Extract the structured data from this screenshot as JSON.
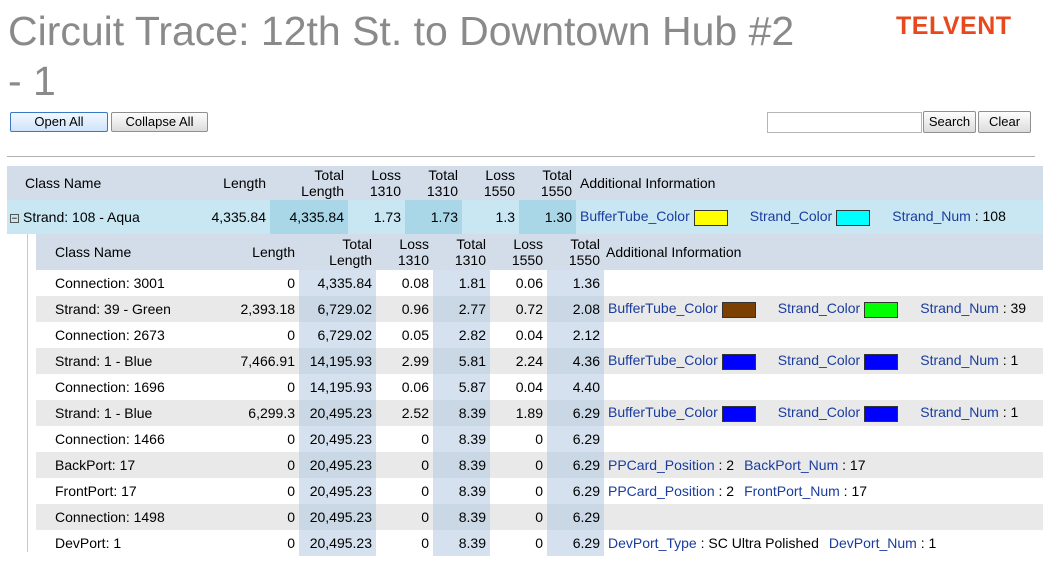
{
  "title": "Circuit Trace: 12th St. to Downtown Hub #2 - 1",
  "logo": "TELVENT",
  "toolbar": {
    "open_all": "Open All",
    "collapse_all": "Collapse All",
    "search": "Search",
    "clear": "Clear",
    "search_value": ""
  },
  "colors": {
    "yellow": "#ffff00",
    "aqua": "#00ffff",
    "brown": "#7b3f00",
    "green": "#00ff00",
    "blue": "#0000ff"
  },
  "columns": {
    "class_name": "Class Name",
    "length": "Length",
    "total_length": [
      "Total",
      "Length"
    ],
    "loss_1310": [
      "Loss",
      "1310"
    ],
    "total_1310": [
      "Total",
      "1310"
    ],
    "loss_1550": [
      "Loss",
      "1550"
    ],
    "total_1550": [
      "Total",
      "1550"
    ],
    "additional": "Additional Information"
  },
  "strand": {
    "toggle": "−",
    "name": "Strand: 108 - Aqua",
    "length": "4,335.84",
    "total_length": "4,335.84",
    "loss_1310": "1.73",
    "total_1310": "1.73",
    "loss_1550": "1.3",
    "total_1550": "1.30",
    "info": [
      {
        "key": "BufferTube_Color",
        "swatch": "#ffff00"
      },
      {
        "key": "Strand_Color",
        "swatch": "#00ffff"
      },
      {
        "key": "Strand_Num",
        "sep": " : ",
        "value": "108"
      }
    ]
  },
  "rows": [
    {
      "name": "Connection: 3001",
      "length": "0",
      "total_length": "4,335.84",
      "loss_1310": "0.08",
      "total_1310": "1.81",
      "loss_1550": "0.06",
      "total_1550": "1.36",
      "info": []
    },
    {
      "name": "Strand: 39 - Green",
      "length": "2,393.18",
      "total_length": "6,729.02",
      "loss_1310": "0.96",
      "total_1310": "2.77",
      "loss_1550": "0.72",
      "total_1550": "2.08",
      "info": [
        {
          "key": "BufferTube_Color",
          "swatch": "#7b3f00"
        },
        {
          "key": "Strand_Color",
          "swatch": "#00ff00"
        },
        {
          "key": "Strand_Num",
          "sep": " : ",
          "value": "39"
        }
      ]
    },
    {
      "name": "Connection: 2673",
      "length": "0",
      "total_length": "6,729.02",
      "loss_1310": "0.05",
      "total_1310": "2.82",
      "loss_1550": "0.04",
      "total_1550": "2.12",
      "info": []
    },
    {
      "name": "Strand: 1 - Blue",
      "length": "7,466.91",
      "total_length": "14,195.93",
      "loss_1310": "2.99",
      "total_1310": "5.81",
      "loss_1550": "2.24",
      "total_1550": "4.36",
      "info": [
        {
          "key": "BufferTube_Color",
          "swatch": "#0000ff"
        },
        {
          "key": "Strand_Color",
          "swatch": "#0000ff"
        },
        {
          "key": "Strand_Num",
          "sep": " : ",
          "value": "1"
        }
      ]
    },
    {
      "name": "Connection: 1696",
      "length": "0",
      "total_length": "14,195.93",
      "loss_1310": "0.06",
      "total_1310": "5.87",
      "loss_1550": "0.04",
      "total_1550": "4.40",
      "info": []
    },
    {
      "name": "Strand: 1 - Blue",
      "length": "6,299.3",
      "total_length": "20,495.23",
      "loss_1310": "2.52",
      "total_1310": "8.39",
      "loss_1550": "1.89",
      "total_1550": "6.29",
      "info": [
        {
          "key": "BufferTube_Color",
          "swatch": "#0000ff"
        },
        {
          "key": "Strand_Color",
          "swatch": "#0000ff"
        },
        {
          "key": "Strand_Num",
          "sep": " : ",
          "value": "1"
        }
      ]
    },
    {
      "name": "Connection: 1466",
      "length": "0",
      "total_length": "20,495.23",
      "loss_1310": "0",
      "total_1310": "8.39",
      "loss_1550": "0",
      "total_1550": "6.29",
      "info": []
    },
    {
      "name": "BackPort: 17",
      "length": "0",
      "total_length": "20,495.23",
      "loss_1310": "0",
      "total_1310": "8.39",
      "loss_1550": "0",
      "total_1550": "6.29",
      "info": [
        {
          "key": "PPCard_Position",
          "sep": " : ",
          "value": "2"
        },
        {
          "key": "BackPort_Num",
          "sep": " : ",
          "value": "17"
        }
      ]
    },
    {
      "name": "FrontPort: 17",
      "length": "0",
      "total_length": "20,495.23",
      "loss_1310": "0",
      "total_1310": "8.39",
      "loss_1550": "0",
      "total_1550": "6.29",
      "info": [
        {
          "key": "PPCard_Position",
          "sep": " : ",
          "value": "2"
        },
        {
          "key": "FrontPort_Num",
          "sep": " : ",
          "value": "17"
        }
      ]
    },
    {
      "name": "Connection: 1498",
      "length": "0",
      "total_length": "20,495.23",
      "loss_1310": "0",
      "total_1310": "8.39",
      "loss_1550": "0",
      "total_1550": "6.29",
      "info": []
    },
    {
      "name": "DevPort: 1",
      "length": "0",
      "total_length": "20,495.23",
      "loss_1310": "0",
      "total_1310": "8.39",
      "loss_1550": "0",
      "total_1550": "6.29",
      "info": [
        {
          "key": "DevPort_Type",
          "sep": " : ",
          "value": "SC Ultra Polished"
        },
        {
          "key": "DevPort_Num",
          "sep": " : ",
          "value": "1"
        }
      ]
    }
  ]
}
